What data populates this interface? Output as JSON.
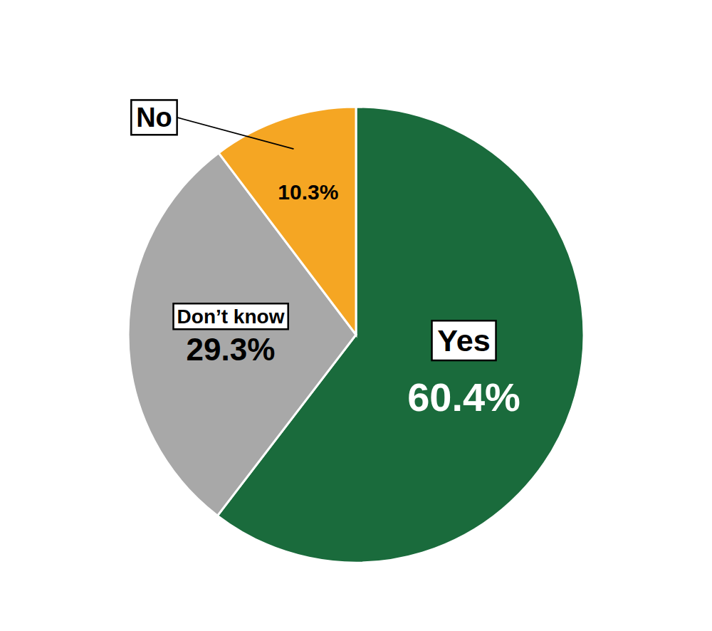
{
  "chart_data": {
    "type": "pie",
    "categories": [
      "Yes",
      "Don’t know",
      "No"
    ],
    "values": [
      60.4,
      29.3,
      10.3
    ],
    "value_labels": [
      "60.4%",
      "29.3%",
      "10.3%"
    ],
    "colors": [
      "#1a6b3c",
      "#a8a8a8",
      "#f5a623"
    ],
    "data_labels": true
  }
}
